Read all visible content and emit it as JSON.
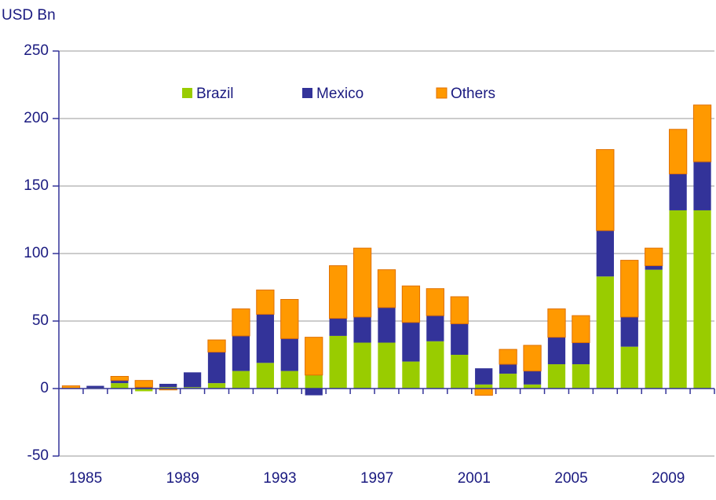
{
  "chart_data": {
    "type": "stacked_bar",
    "y_axis_label": "USD Bn",
    "categories": [
      "1985",
      null,
      null,
      null,
      "1989",
      null,
      null,
      null,
      "1993",
      null,
      null,
      null,
      "1997",
      null,
      null,
      null,
      "2001",
      null,
      null,
      null,
      "2005",
      null,
      null,
      null,
      "2009",
      null,
      null
    ],
    "series": [
      {
        "name": "Brazil",
        "color": "#99cc00",
        "values": [
          0,
          0.5,
          4,
          -2,
          1,
          1,
          4,
          13,
          19,
          13,
          10,
          39,
          34,
          34,
          20,
          35,
          25,
          3,
          11,
          3,
          18,
          18,
          83,
          31,
          88,
          132,
          132
        ]
      },
      {
        "name": "Mexico",
        "color": "#333399",
        "values": [
          0,
          1.5,
          2,
          1,
          2.5,
          11,
          23,
          26,
          36,
          24,
          -5,
          13,
          19,
          26,
          29,
          19,
          23,
          12,
          7,
          10,
          20,
          16,
          34,
          22,
          3,
          27,
          36
        ]
      },
      {
        "name": "Others",
        "color": "#ff9900",
        "values": [
          2,
          0,
          3,
          5,
          -1,
          0,
          9,
          20,
          18,
          29,
          28,
          39,
          51,
          28,
          27,
          20,
          20,
          -5,
          11,
          19,
          21,
          20,
          60,
          42,
          13,
          33,
          42
        ]
      }
    ],
    "ylim": [
      -50,
      250
    ],
    "yticks": [
      -50,
      0,
      50,
      100,
      150,
      200,
      250
    ],
    "grid": true,
    "legend": "top"
  }
}
